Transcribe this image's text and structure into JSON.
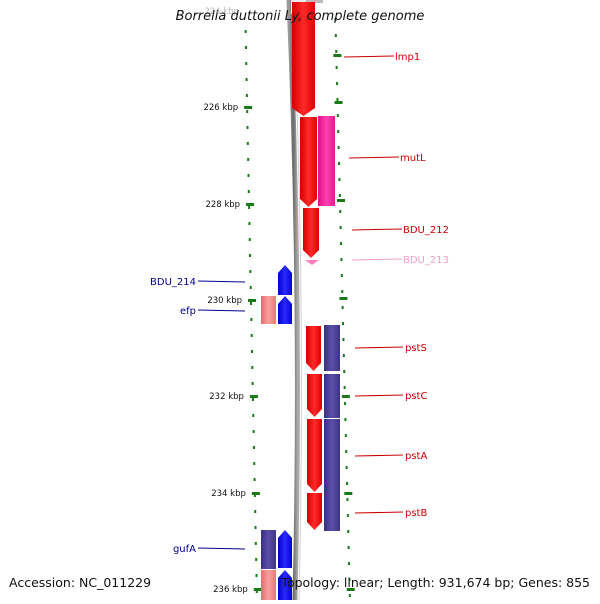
{
  "title": "Borrelia duttonii Ly, complete genome",
  "top_partial_label": "224 kbp",
  "scale_labels": [
    "226 kbp",
    "228 kbp",
    "230 kbp",
    "232 kbp",
    "234 kbp",
    "236 kbp"
  ],
  "genes": [
    {
      "name": "lmp1",
      "color": "#cc0000",
      "side": "right"
    },
    {
      "name": "mutL",
      "color": "#cc0000",
      "side": "right"
    },
    {
      "name": "BDU_212",
      "color": "#cc0000",
      "side": "right"
    },
    {
      "name": "BDU_213",
      "color": "#f0a0c8",
      "side": "right"
    },
    {
      "name": "BDU_214",
      "color": "#00008b",
      "side": "left"
    },
    {
      "name": "efp",
      "color": "#00008b",
      "side": "left"
    },
    {
      "name": "pstS",
      "color": "#cc0000",
      "side": "right"
    },
    {
      "name": "pstC",
      "color": "#cc0000",
      "side": "right"
    },
    {
      "name": "pstA",
      "color": "#cc0000",
      "side": "right"
    },
    {
      "name": "pstB",
      "color": "#cc0000",
      "side": "right"
    },
    {
      "name": "gufA",
      "color": "#00008b",
      "side": "left"
    }
  ],
  "colors": {
    "forward_gene": "#ff0000",
    "reverse_gene": "#0000ff",
    "cog_purple": "#4a3f8f",
    "cog_magenta": "#ff2aa0",
    "cog_pink": "#ef8080",
    "scale": "#1a7a1a",
    "backbone": "#777777"
  },
  "footer": {
    "accession": "Accession: NC_011229",
    "summary": "Topology: linear; Length: 931,674 bp; Genes: 855"
  }
}
